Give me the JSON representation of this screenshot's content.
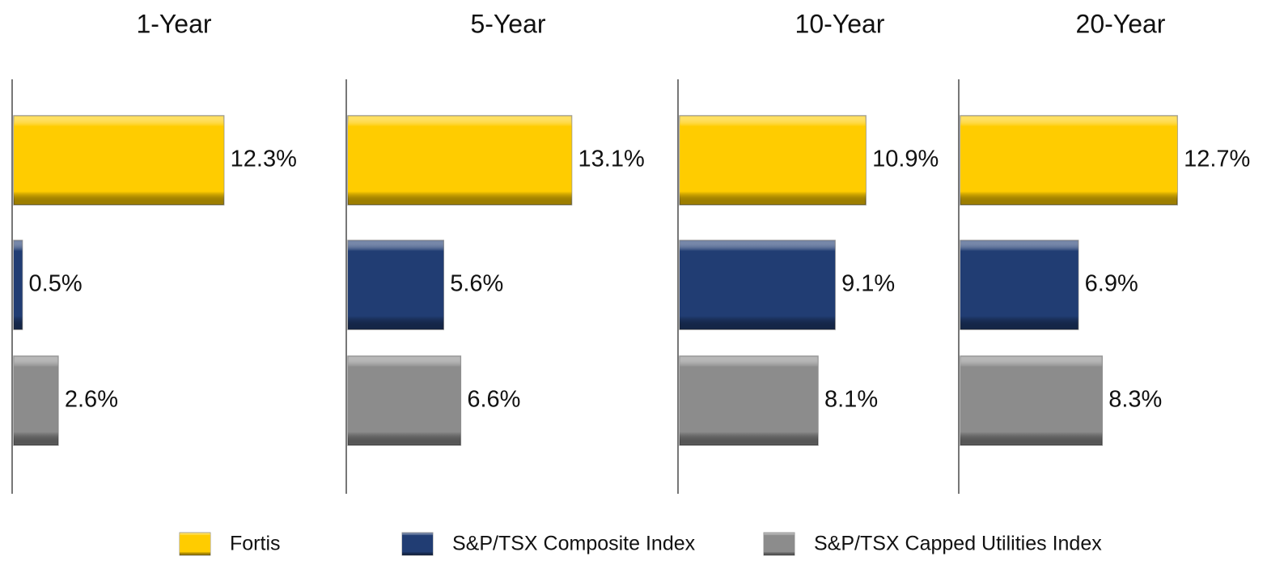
{
  "chart_data": {
    "type": "bar",
    "orientation": "horizontal",
    "categories": [
      "1-Year",
      "5-Year",
      "10-Year",
      "20-Year"
    ],
    "series": [
      {
        "name": "Fortis",
        "color": "#FFCC00",
        "values": [
          12.3,
          13.1,
          10.9,
          12.7
        ],
        "value_labels": [
          "12.3%",
          "13.1%",
          "10.9%",
          "12.7%"
        ]
      },
      {
        "name": "S&P/TSX Composite Index",
        "color": "#213D73",
        "values": [
          0.5,
          5.6,
          9.1,
          6.9
        ],
        "value_labels": [
          "0.5%",
          "5.6%",
          "9.1%",
          "6.9%"
        ]
      },
      {
        "name": "S&P/TSX Capped Utilities Index",
        "color": "#8C8C8C",
        "values": [
          2.6,
          6.6,
          8.1,
          8.3
        ],
        "value_labels": [
          "2.6%",
          "6.6%",
          "8.1%",
          "8.3%"
        ]
      }
    ],
    "xlim": [
      0,
      18
    ]
  }
}
